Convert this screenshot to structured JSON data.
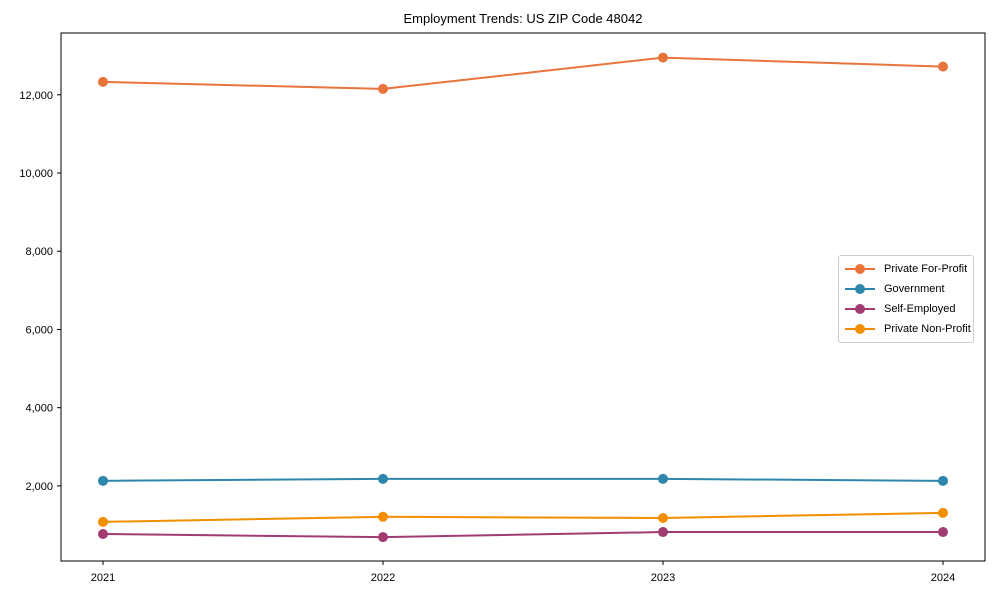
{
  "chart_data": {
    "type": "line",
    "title": "Employment Trends: US ZIP Code 48042",
    "x": [
      2021,
      2022,
      2023,
      2024
    ],
    "x_tick_labels": [
      "2021",
      "2022",
      "2023",
      "2024"
    ],
    "series": [
      {
        "name": "Private For-Profit",
        "color": "#e8743b",
        "values": [
          12330,
          12150,
          12950,
          12720
        ]
      },
      {
        "name": "Government",
        "color": "#2e86ab",
        "values": [
          2130,
          2180,
          2180,
          2130
        ]
      },
      {
        "name": "Self-Employed",
        "color": "#a23b72",
        "values": [
          770,
          690,
          820,
          820
        ]
      },
      {
        "name": "Private Non-Profit",
        "color": "#f18f01",
        "values": [
          1080,
          1210,
          1180,
          1310
        ]
      }
    ],
    "yticks": [
      {
        "value": 2000,
        "label": "2,000"
      },
      {
        "value": 4000,
        "label": "4,000"
      },
      {
        "value": 6000,
        "label": "6,000"
      },
      {
        "value": 8000,
        "label": "8,000"
      },
      {
        "value": 10000,
        "label": "10,000"
      },
      {
        "value": 12000,
        "label": "12,000"
      }
    ],
    "xlabel": "",
    "ylabel": "",
    "xlim": [
      2020.85,
      2024.15
    ],
    "ylim": [
      80,
      13580
    ],
    "grid": false,
    "legend_position": "center-right",
    "axis_color": "#000000",
    "background": "#ffffff"
  }
}
